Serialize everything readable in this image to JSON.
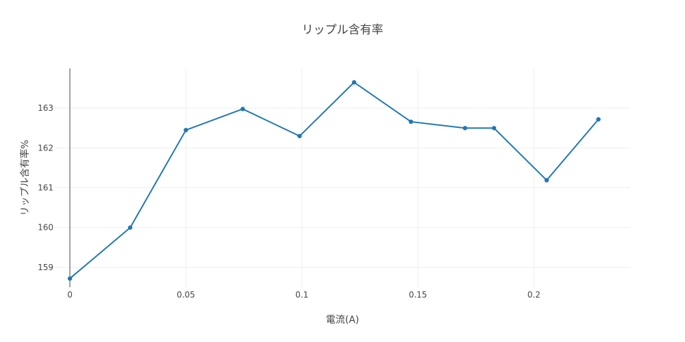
{
  "chart_data": {
    "type": "line",
    "title": "リップル含有率",
    "xlabel": "電流(A)",
    "ylabel": "リップル含有率%",
    "xlim": [
      -0.0065,
      0.2415
    ],
    "ylim": [
      158.5,
      164.0
    ],
    "x_ticks": [
      0,
      0.05,
      0.1,
      0.15,
      0.2
    ],
    "x_tick_labels": [
      "0",
      "0.05",
      "0.1",
      "0.15",
      "0.2"
    ],
    "y_ticks": [
      159,
      160,
      161,
      162,
      163
    ],
    "y_tick_labels": [
      "159",
      "160",
      "161",
      "162",
      "163"
    ],
    "grid": true,
    "legend": "none",
    "color": "#1f77b4",
    "series": [
      {
        "name": "リップル含有率",
        "x": [
          0,
          0.026,
          0.05,
          0.0745,
          0.099,
          0.1225,
          0.147,
          0.1703,
          0.1828,
          0.2055,
          0.2278
        ],
        "y": [
          158.72,
          160.0,
          162.45,
          162.98,
          162.3,
          163.65,
          162.66,
          162.5,
          162.5,
          161.19,
          162.72
        ]
      }
    ]
  }
}
